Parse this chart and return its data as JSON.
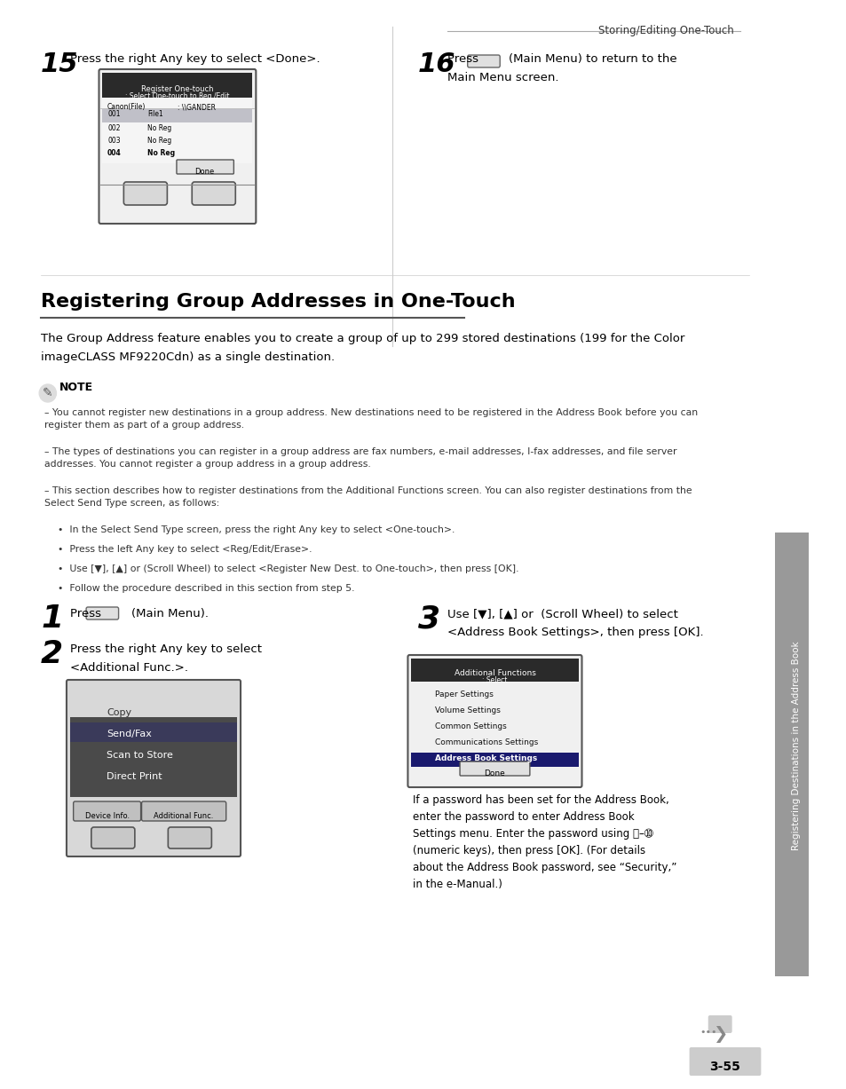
{
  "page_bg": "#ffffff",
  "header_text": "Storing/Editing One-Touch",
  "section_title": "Registering Group Addresses in One-Touch",
  "body_text1": "The Group Address feature enables you to create a group of up to 299 stored destinations (199 for the Color\nimageCLASS MF9220Cdn) as a single destination.",
  "note_label": "NOTE",
  "note_lines": [
    "You cannot register new destinations in a group address. New destinations need to be registered in the Address Book before you can\nregister them as part of a group address.",
    "The types of destinations you can register in a group address are fax numbers, e-mail addresses, I-fax addresses, and file server\naddresses. You cannot register a group address in a group address.",
    "This section describes how to register destinations from the Additional Functions screen. You can also register destinations from the\nSelect Send Type screen, as follows:",
    "•  In the Select Send Type screen, press the right Any key to select <One-touch>.",
    "•  Press the left Any key to select <Reg/Edit/Erase>.",
    "•  Use [▼], [▲] or (Scroll Wheel) to select <Register New Dest. to One-touch>, then press [OK].",
    "•  Follow the procedure described in this section from step 5."
  ],
  "step1_num": "1",
  "step1_text": "Press        (Main Menu).",
  "step2_num": "2",
  "step2_text": "Press the right Any key to select\n<Additional Func.>.",
  "step3_num": "3",
  "step3_text": "Use [▼], [▲] or  (Scroll Wheel) to select\n<Address Book Settings>, then press [OK].",
  "step15_num": "15",
  "step15_text": "Press the right Any key to select <Done>.",
  "step16_num": "16",
  "step16_text": "Press        (Main Menu) to return to the\nMain Menu screen.",
  "sidebar_text": "Registering Destinations in the Address Book",
  "page_num": "3-55",
  "divider_color": "#cccccc",
  "step_num_color": "#000000",
  "title_color": "#000000",
  "text_color": "#000000",
  "sidebar_bg": "#999999",
  "screen_bg": "#e8e8e8",
  "screen_dark_bg": "#333333",
  "screen_selected_bg": "#2a2a2a",
  "screen_highlight_bg": "#1a1a6e",
  "screen_border": "#666666"
}
